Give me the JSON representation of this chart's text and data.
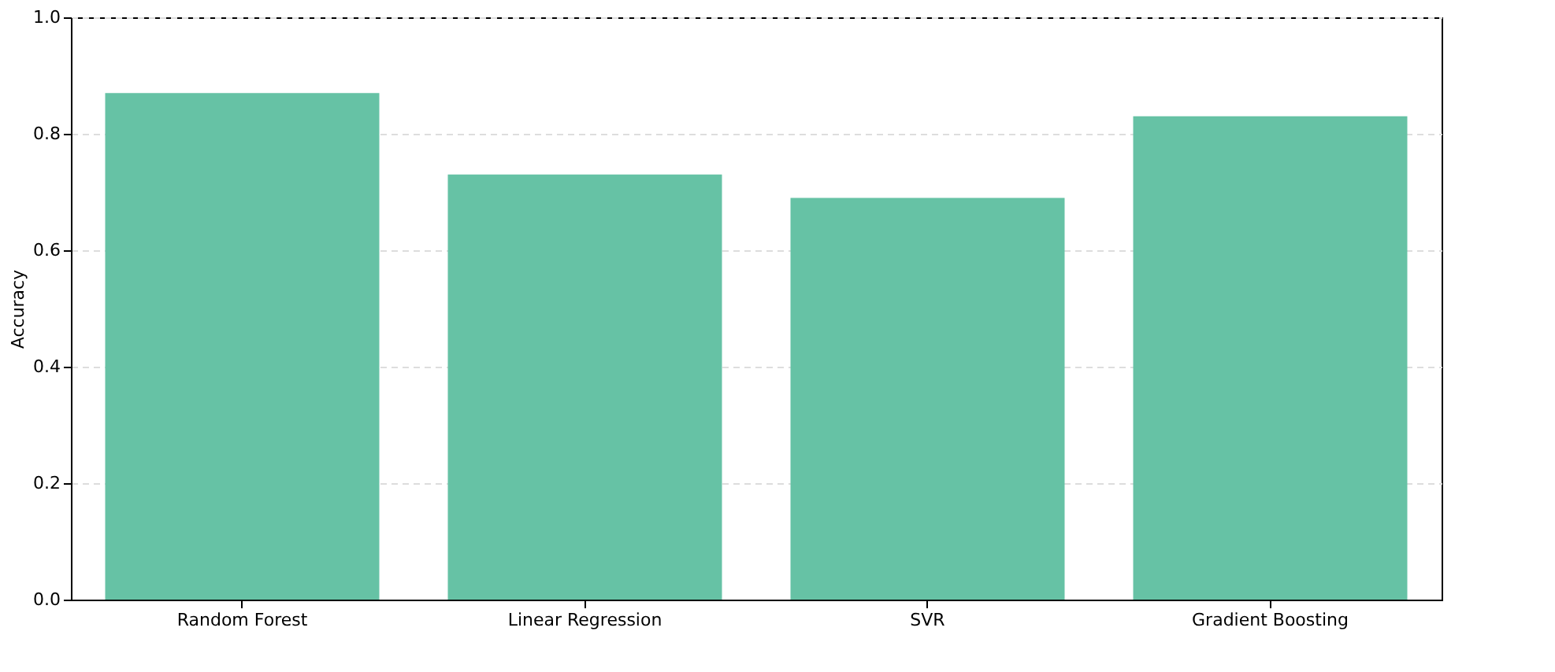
{
  "chart_data": {
    "type": "bar",
    "ylabel": "Accuracy",
    "categories": [
      "Random Forest",
      "Linear Regression",
      "SVR",
      "Gradient Boosting"
    ],
    "values": [
      0.87,
      0.73,
      0.69,
      0.83
    ],
    "color": "#66c2a5",
    "ylim": [
      0,
      1.0
    ],
    "yticks": [
      {
        "value": 0,
        "label": "0.0"
      },
      {
        "value": 0.2,
        "label": "0.2"
      },
      {
        "value": 0.4,
        "label": "0.4"
      },
      {
        "value": 0.6,
        "label": "0.6"
      },
      {
        "value": 0.8,
        "label": "0.8"
      },
      {
        "value": 1.0,
        "label": "1.0"
      }
    ],
    "grid": "y"
  }
}
